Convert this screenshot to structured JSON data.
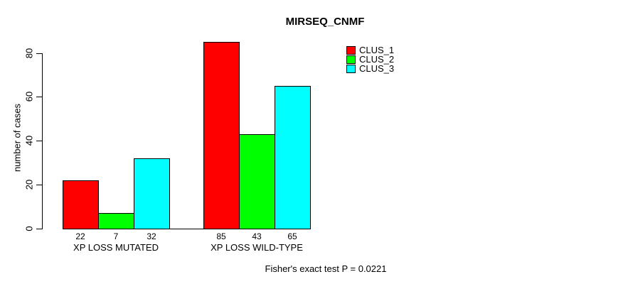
{
  "chart_data": {
    "type": "bar",
    "title": "MIRSEQ_CNMF",
    "xlabel": "",
    "ylabel": "number of cases",
    "footnote": "Fisher's exact test P = 0.0221",
    "categories": [
      "XP LOSS MUTATED",
      "XP LOSS WILD-TYPE"
    ],
    "series": [
      {
        "name": "CLUS_1",
        "color": "#ff0000",
        "values": [
          22,
          85
        ]
      },
      {
        "name": "CLUS_2",
        "color": "#00ff00",
        "values": [
          7,
          43
        ]
      },
      {
        "name": "CLUS_3",
        "color": "#00ffff",
        "values": [
          32,
          65
        ]
      }
    ],
    "ylim": [
      0,
      80
    ],
    "yticks": [
      0,
      20,
      40,
      60,
      80
    ],
    "grid": false,
    "legend_position": "top-right",
    "background": "#ffffff",
    "axis_color": "#000000"
  }
}
